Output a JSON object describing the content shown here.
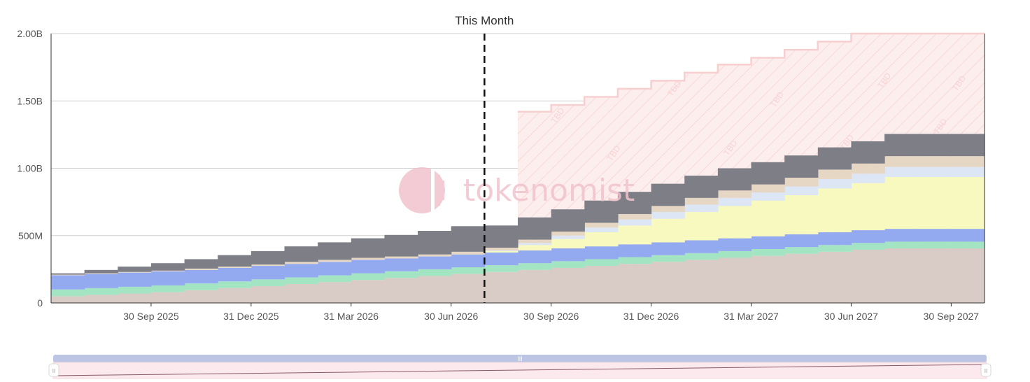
{
  "watermark": "tokenomist",
  "zoom_handle_glyph": "III",
  "chart_data": {
    "type": "area",
    "title": "This Month",
    "xlabel": "",
    "ylabel": "",
    "ylim": [
      0,
      2000000000
    ],
    "y_ticks": [
      {
        "value": 0,
        "label": "0"
      },
      {
        "value": 500000000,
        "label": "500M"
      },
      {
        "value": 1000000000,
        "label": "1.00B"
      },
      {
        "value": 1500000000,
        "label": "1.50B"
      },
      {
        "value": 2000000000,
        "label": "2.00B"
      }
    ],
    "x_ticks": [
      "30 Sep 2025",
      "31 Dec 2025",
      "31 Mar 2026",
      "30 Jun 2026",
      "30 Sep 2026",
      "31 Dec 2026",
      "31 Mar 2027",
      "30 Jun 2027",
      "30 Sep 2027"
    ],
    "x": [
      "Jul 2025",
      "Aug 2025",
      "Sep 2025",
      "Oct 2025",
      "Nov 2025",
      "Dec 2025",
      "Jan 2026",
      "Feb 2026",
      "Mar 2026",
      "Apr 2026",
      "May 2026",
      "Jun 2026",
      "Jul 2026",
      "Aug 2026",
      "Sep 2026",
      "Oct 2026",
      "Nov 2026",
      "Dec 2026",
      "Jan 2027",
      "Feb 2027",
      "Mar 2027",
      "Apr 2027",
      "May 2027",
      "Jun 2027",
      "Jul 2027",
      "Aug 2027",
      "Sep 2027",
      "Oct 2027"
    ],
    "current_marker": {
      "index": 13,
      "label": "This Month"
    },
    "tbd": {
      "label": "TBD",
      "start_index": 14,
      "values": [
        1420000000,
        1470000000,
        1530000000,
        1590000000,
        1650000000,
        1710000000,
        1770000000,
        1820000000,
        1880000000,
        1940000000,
        2000000000,
        2000000000,
        2000000000,
        2000000000
      ],
      "fill": "#fde9e9",
      "stroke": "#f7cfcf"
    },
    "series": [
      {
        "color": "#d9cbc5",
        "values": [
          50000000,
          60000000,
          70000000,
          80000000,
          95000000,
          110000000,
          125000000,
          140000000,
          155000000,
          170000000,
          185000000,
          200000000,
          215000000,
          230000000,
          245000000,
          260000000,
          275000000,
          290000000,
          305000000,
          320000000,
          335000000,
          350000000,
          365000000,
          380000000,
          395000000,
          405000000,
          405000000,
          405000000
        ]
      },
      {
        "color": "#a3e4c3",
        "values": [
          50000000,
          50000000,
          50000000,
          50000000,
          50000000,
          50000000,
          50000000,
          50000000,
          50000000,
          50000000,
          50000000,
          50000000,
          50000000,
          50000000,
          50000000,
          50000000,
          50000000,
          50000000,
          50000000,
          50000000,
          50000000,
          50000000,
          50000000,
          50000000,
          50000000,
          50000000,
          50000000,
          50000000
        ]
      },
      {
        "color": "#93a9f0",
        "values": [
          105000000,
          105000000,
          105000000,
          105000000,
          100000000,
          100000000,
          100000000,
          100000000,
          100000000,
          100000000,
          95000000,
          95000000,
          95000000,
          95000000,
          95000000,
          95000000,
          95000000,
          95000000,
          95000000,
          95000000,
          95000000,
          95000000,
          95000000,
          95000000,
          95000000,
          95000000,
          95000000,
          95000000
        ]
      },
      {
        "color": "#f7f9be",
        "values": [
          0,
          0,
          0,
          0,
          0,
          0,
          0,
          0,
          0,
          0,
          0,
          0,
          0,
          10000000,
          40000000,
          70000000,
          105000000,
          140000000,
          175000000,
          210000000,
          240000000,
          265000000,
          290000000,
          325000000,
          350000000,
          385000000,
          385000000,
          385000000
        ]
      },
      {
        "color": "#dce6f5",
        "values": [
          0,
          0,
          0,
          0,
          0,
          0,
          0,
          0,
          0,
          0,
          0,
          0,
          0,
          5000000,
          15000000,
          25000000,
          35000000,
          45000000,
          50000000,
          55000000,
          60000000,
          60000000,
          65000000,
          70000000,
          70000000,
          75000000,
          75000000,
          75000000
        ]
      },
      {
        "color": "#e6d6c4",
        "values": [
          5000000,
          5000000,
          5000000,
          5000000,
          10000000,
          10000000,
          10000000,
          15000000,
          15000000,
          15000000,
          15000000,
          15000000,
          20000000,
          20000000,
          25000000,
          30000000,
          35000000,
          40000000,
          45000000,
          50000000,
          55000000,
          60000000,
          65000000,
          70000000,
          75000000,
          80000000,
          80000000,
          80000000
        ]
      },
      {
        "color": "#7e7e87",
        "values": [
          10000000,
          25000000,
          40000000,
          55000000,
          70000000,
          85000000,
          100000000,
          115000000,
          130000000,
          145000000,
          160000000,
          175000000,
          190000000,
          165000000,
          165000000,
          165000000,
          165000000,
          165000000,
          165000000,
          165000000,
          165000000,
          165000000,
          165000000,
          165000000,
          165000000,
          165000000,
          165000000,
          165000000
        ]
      }
    ]
  }
}
